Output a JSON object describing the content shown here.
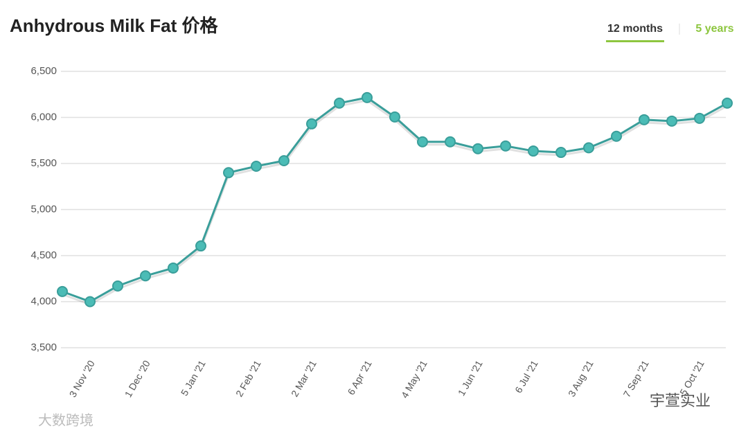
{
  "chart_data": {
    "type": "line",
    "title": "Anhydrous Milk Fat 价格",
    "categories": [
      null,
      "3 Nov '20",
      null,
      "1 Dec '20",
      null,
      "5 Jan '21",
      null,
      "2 Feb '21",
      null,
      "2 Mar '21",
      null,
      "6 Apr '21",
      null,
      "4 May '21",
      null,
      "1 Jun '21",
      null,
      "6 Jul '21",
      null,
      "3 Aug '21",
      null,
      "7 Sep '21",
      null,
      "5 Oct '21",
      null
    ],
    "series": [
      {
        "name": "Anhydrous Milk Fat",
        "color": "#3a9e9a",
        "values": [
          4110,
          4000,
          4170,
          4280,
          4365,
          4605,
          5400,
          5470,
          5530,
          5930,
          6155,
          6215,
          6005,
          5735,
          5735,
          5660,
          5690,
          5635,
          5620,
          5670,
          5795,
          5975,
          5960,
          5990,
          6155
        ]
      }
    ],
    "ylim": [
      3500,
      6500
    ],
    "yticks": [
      {
        "value": 3500,
        "label": "3,500"
      },
      {
        "value": 4000,
        "label": "4,000"
      },
      {
        "value": 4500,
        "label": "4,500"
      },
      {
        "value": 5000,
        "label": "5,000"
      },
      {
        "value": 5500,
        "label": "5,500"
      },
      {
        "value": 6000,
        "label": "6,000"
      },
      {
        "value": 6500,
        "label": "6,500"
      }
    ],
    "grid": true
  },
  "controls": {
    "range_options": [
      "12 months",
      "5 years"
    ]
  },
  "watermarks": [
    "大数跨境",
    "宇萱实业"
  ]
}
